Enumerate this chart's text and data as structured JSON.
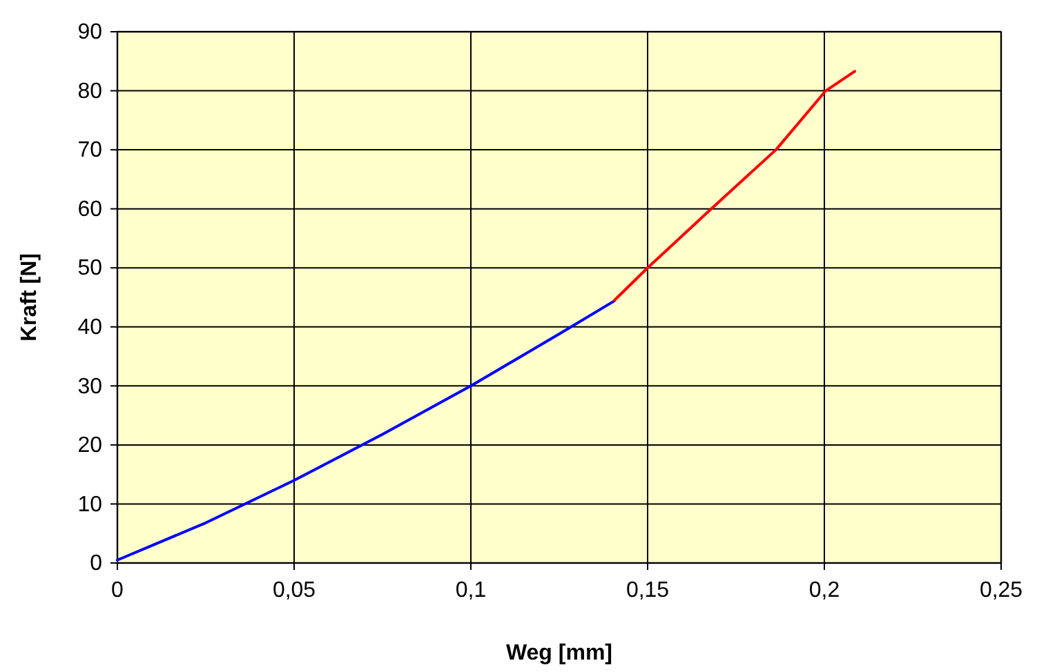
{
  "chart_data": {
    "type": "line",
    "xlabel": "Weg [mm]",
    "ylabel": "Kraft [N]",
    "xlim": [
      0,
      0.25
    ],
    "xticks": [
      {
        "value": 0,
        "label": "0"
      },
      {
        "value": 0.05,
        "label": "0,05"
      },
      {
        "value": 0.1,
        "label": "0,1"
      },
      {
        "value": 0.15,
        "label": "0,15"
      },
      {
        "value": 0.2,
        "label": "0,2"
      },
      {
        "value": 0.25,
        "label": "0,25"
      }
    ],
    "ylim": [
      0,
      90
    ],
    "yticks": [
      0,
      10,
      20,
      30,
      40,
      50,
      60,
      70,
      80,
      90
    ],
    "grid": true,
    "marker": "none",
    "line_style": "solid",
    "series": [
      {
        "color": "#0000ff",
        "x": [
          0,
          0.025,
          0.05,
          0.075,
          0.1,
          0.125,
          0.1406
        ],
        "values": [
          0.5,
          6.8,
          14,
          21.8,
          30,
          38.8,
          44.4
        ]
      },
      {
        "color": "#ff0000",
        "x": [
          0.1406,
          0.15,
          0.168,
          0.1863,
          0.2004,
          0.2086
        ],
        "values": [
          44.5,
          50,
          60,
          70,
          80,
          83.3
        ]
      }
    ]
  }
}
